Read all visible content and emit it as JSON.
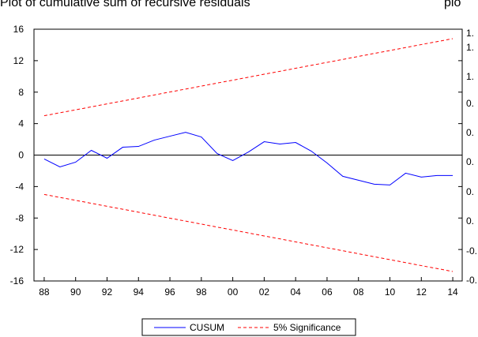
{
  "chart_data": {
    "type": "line",
    "title": "Plot of cumulative sum of recursive residuals",
    "x": [
      1988,
      1989,
      1990,
      1991,
      1992,
      1993,
      1994,
      1995,
      1996,
      1997,
      1998,
      1999,
      2000,
      2001,
      2002,
      2003,
      2004,
      2005,
      2006,
      2007,
      2008,
      2009,
      2010,
      2011,
      2012,
      2013,
      2014
    ],
    "series": [
      {
        "name": "CUSUM",
        "color": "#0000ff",
        "dash": false,
        "values": [
          -0.5,
          -1.5,
          -0.9,
          0.6,
          -0.4,
          1.0,
          1.1,
          1.9,
          2.4,
          2.9,
          2.3,
          0.2,
          -0.7,
          0.4,
          1.7,
          1.4,
          1.6,
          0.5,
          -1.0,
          -2.7,
          -3.2,
          -3.7,
          -3.8,
          -2.3,
          -2.8,
          -2.6,
          -2.6
        ]
      },
      {
        "name": "5% Significance",
        "color": "#ff0000",
        "dash": true,
        "values": [
          5.0,
          5.38,
          5.75,
          6.13,
          6.51,
          6.88,
          7.26,
          7.64,
          8.02,
          8.39,
          8.77,
          9.15,
          9.52,
          9.9,
          10.28,
          10.65,
          11.03,
          11.41,
          11.78,
          12.16,
          12.54,
          12.92,
          13.29,
          13.67,
          14.05,
          14.42,
          14.8
        ],
        "lower": [
          -5.0,
          -5.38,
          -5.75,
          -6.13,
          -6.51,
          -6.88,
          -7.26,
          -7.64,
          -8.02,
          -8.39,
          -8.77,
          -9.15,
          -9.52,
          -9.9,
          -10.28,
          -10.65,
          -11.03,
          -11.41,
          -11.78,
          -12.16,
          -12.54,
          -12.92,
          -13.29,
          -13.67,
          -14.05,
          -14.42,
          -14.8
        ]
      }
    ],
    "xlim": [
      1987.35,
      2014.6
    ],
    "xticks": [
      {
        "value": 1988,
        "label": "88"
      },
      {
        "value": 1990,
        "label": "90"
      },
      {
        "value": 1992,
        "label": "92"
      },
      {
        "value": 1994,
        "label": "94"
      },
      {
        "value": 1996,
        "label": "96"
      },
      {
        "value": 1998,
        "label": "98"
      },
      {
        "value": 2000,
        "label": "00"
      },
      {
        "value": 2002,
        "label": "02"
      },
      {
        "value": 2004,
        "label": "04"
      },
      {
        "value": 2006,
        "label": "06"
      },
      {
        "value": 2008,
        "label": "08"
      },
      {
        "value": 2010,
        "label": "10"
      },
      {
        "value": 2012,
        "label": "12"
      },
      {
        "value": 2014,
        "label": "14"
      }
    ],
    "ylim": [
      -16,
      16
    ],
    "yticks": [
      -16,
      -12,
      -8,
      -4,
      0,
      4,
      8,
      12,
      16
    ],
    "zero_line": true,
    "grid": false
  },
  "clipped_panel": {
    "title": "plo",
    "tick_labels": [
      "1.",
      "1.",
      "1.",
      "0.",
      "0.",
      "0.",
      "0.",
      "0.",
      "-0.",
      "-0."
    ]
  }
}
